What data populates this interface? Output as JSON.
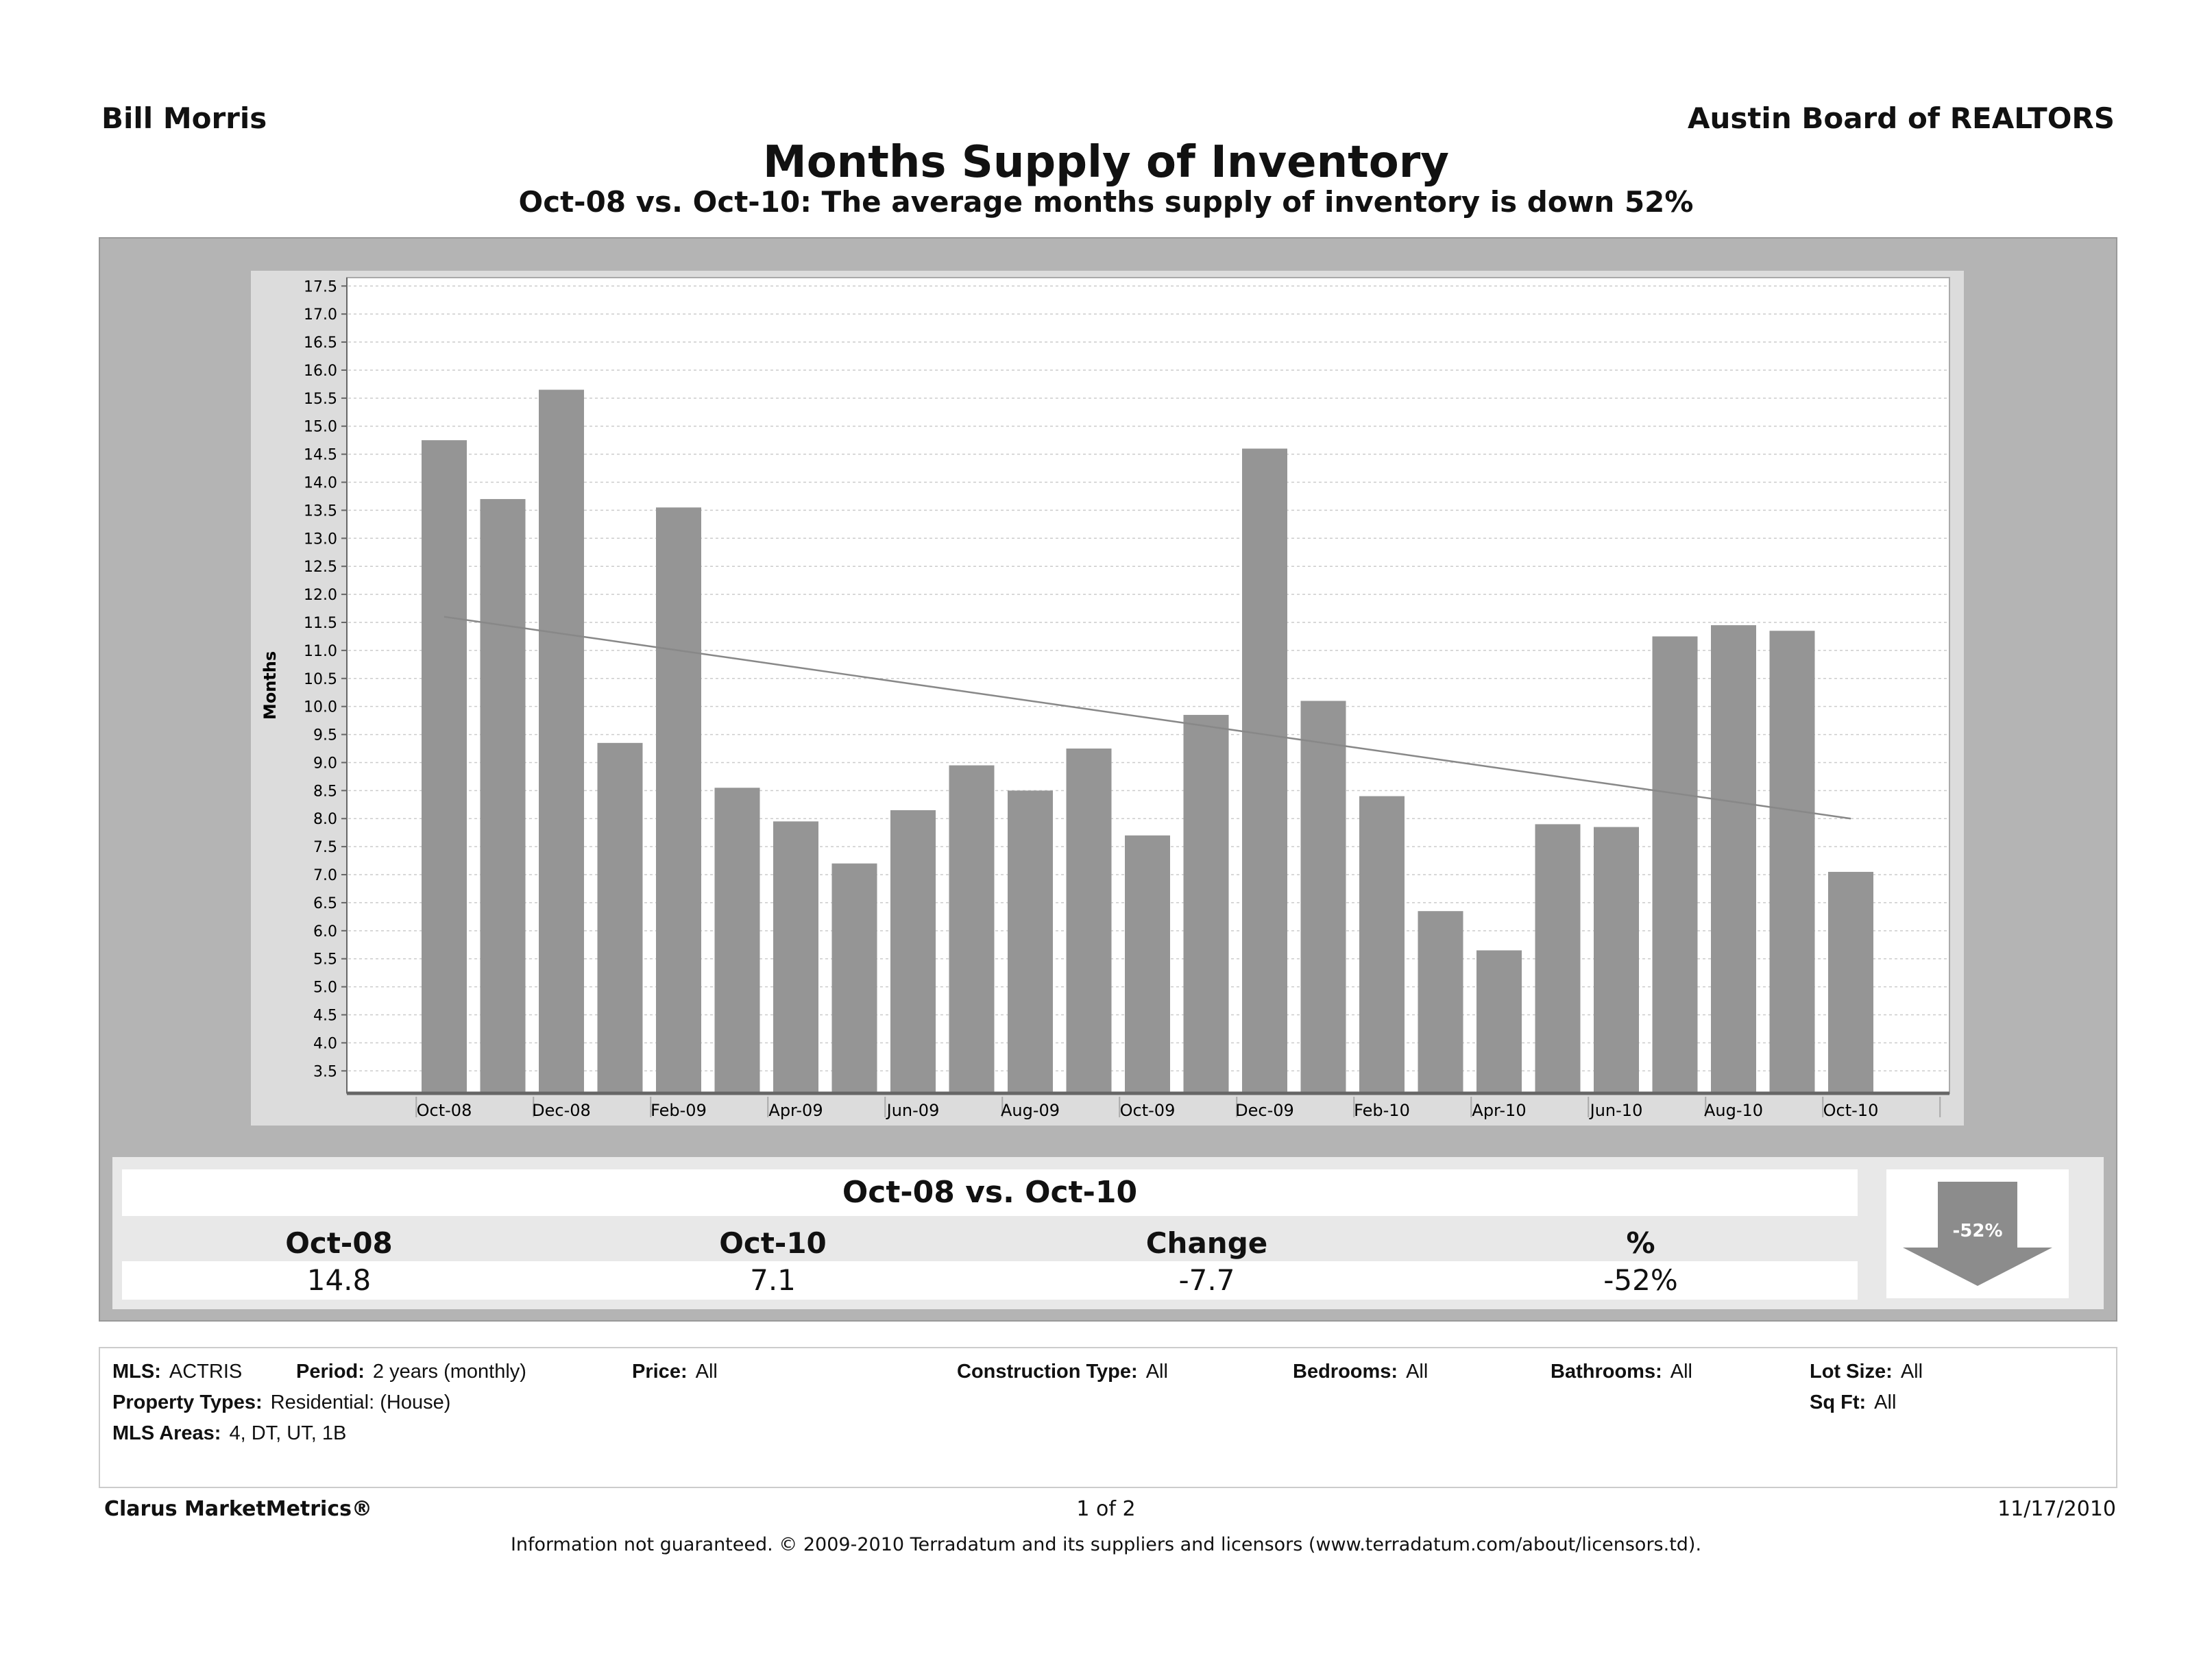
{
  "header": {
    "agent": "Bill Morris",
    "board": "Austin Board of REALTORS"
  },
  "chart_data": {
    "type": "bar",
    "title": "Months Supply of Inventory",
    "subtitle": "Oct-08 vs. Oct-10:  The average months supply of inventory is down 52%",
    "xlabel": "",
    "ylabel": "Months",
    "ylim": [
      3.1,
      17.65
    ],
    "grid": true,
    "yticks": [
      "3.5",
      "4.0",
      "4.5",
      "5.0",
      "5.5",
      "6.0",
      "6.5",
      "7.0",
      "7.5",
      "8.0",
      "8.5",
      "9.0",
      "9.5",
      "10.0",
      "10.5",
      "11.0",
      "11.5",
      "12.0",
      "12.5",
      "13.0",
      "13.5",
      "14.0",
      "14.5",
      "15.0",
      "15.5",
      "16.0",
      "16.5",
      "17.0",
      "17.5"
    ],
    "categories": [
      "Oct-08",
      "Nov-08",
      "Dec-08",
      "Jan-09",
      "Feb-09",
      "Mar-09",
      "Apr-09",
      "May-09",
      "Jun-09",
      "Jul-09",
      "Aug-09",
      "Sep-09",
      "Oct-09",
      "Nov-09",
      "Dec-09",
      "Jan-10",
      "Feb-10",
      "Mar-10",
      "Apr-10",
      "May-10",
      "Jun-10",
      "Jul-10",
      "Aug-10",
      "Sep-10",
      "Oct-10"
    ],
    "xtick_labels": [
      "Oct-08",
      "Dec-08",
      "Feb-09",
      "Apr-09",
      "Jun-09",
      "Aug-09",
      "Oct-09",
      "Dec-09",
      "Feb-10",
      "Apr-10",
      "Jun-10",
      "Aug-10",
      "Oct-10"
    ],
    "values": [
      14.75,
      13.7,
      15.65,
      9.35,
      13.55,
      8.55,
      7.95,
      7.2,
      8.15,
      8.95,
      8.5,
      9.25,
      7.7,
      9.85,
      14.6,
      10.1,
      8.4,
      6.35,
      5.65,
      7.9,
      7.85,
      11.25,
      11.45,
      11.35,
      7.05
    ],
    "trend": {
      "name": "trend line",
      "start": 11.6,
      "end": 8.0
    },
    "bar_color": "#959595"
  },
  "summary": {
    "title": "Oct-08 vs. Oct-10",
    "headers": [
      "Oct-08",
      "Oct-10",
      "Change",
      "%"
    ],
    "values": [
      "14.8",
      "7.1",
      "-7.7",
      "-52%"
    ],
    "arrow_label": "-52%"
  },
  "criteria": {
    "mls_label": "MLS:",
    "mls": "ACTRIS",
    "period_label": "Period:",
    "period": "2 years (monthly)",
    "price_label": "Price:",
    "price": "All",
    "construction_label": "Construction Type:",
    "construction": "All",
    "bedrooms_label": "Bedrooms:",
    "bedrooms": "All",
    "bathrooms_label": "Bathrooms:",
    "bathrooms": "All",
    "lotsize_label": "Lot Size:",
    "lotsize": "All",
    "proptypes_label": "Property Types:",
    "proptypes": "Residential: (House)",
    "sqft_label": "Sq Ft:",
    "sqft": "All",
    "areas_label": "MLS Areas:",
    "areas": "4, DT, UT, 1B"
  },
  "footer": {
    "brand": "Clarus MarketMetrics®",
    "page": "1 of 2",
    "date": "11/17/2010",
    "disclaimer": "Information not guaranteed.  © 2009-2010 Terradatum and its suppliers and licensors (www.terradatum.com/about/licensors.td)."
  }
}
